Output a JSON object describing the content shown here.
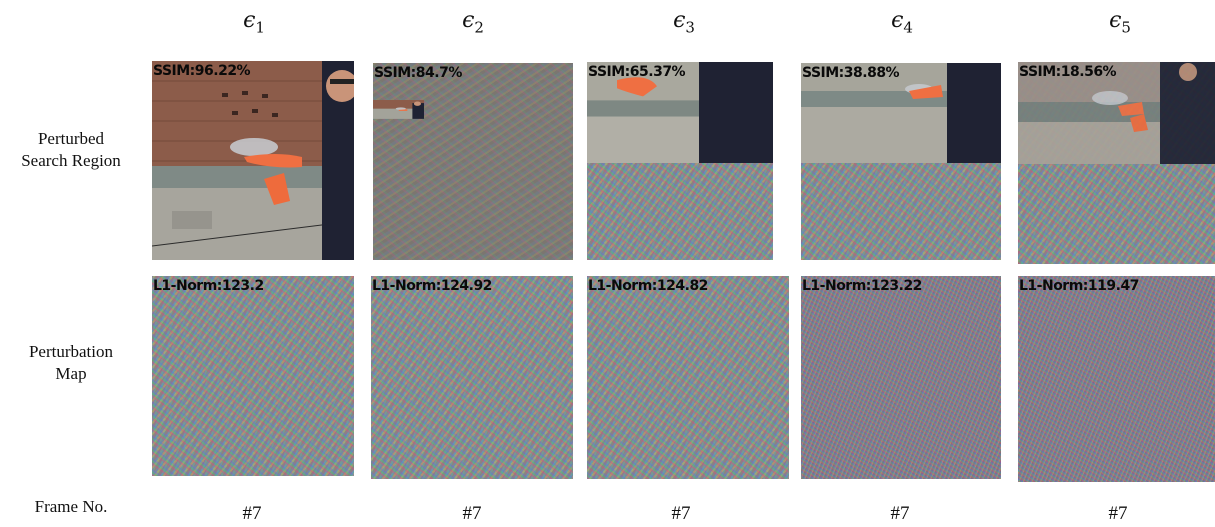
{
  "columns": [
    {
      "symbol": "ϵ",
      "sub": "1",
      "ssim": "SSIM:96.22%",
      "l1": "L1-Norm:123.2",
      "frame": "#7"
    },
    {
      "symbol": "ϵ",
      "sub": "2",
      "ssim": "SSIM:84.7%",
      "l1": "L1-Norm:124.92",
      "frame": "#7"
    },
    {
      "symbol": "ϵ",
      "sub": "3",
      "ssim": "SSIM:65.37%",
      "l1": "L1-Norm:124.82",
      "frame": "#7"
    },
    {
      "symbol": "ϵ",
      "sub": "4",
      "ssim": "SSIM:38.88%",
      "l1": "L1-Norm:123.22",
      "frame": "#7"
    },
    {
      "symbol": "ϵ",
      "sub": "5",
      "ssim": "SSIM:18.56%",
      "l1": "L1-Norm:119.47",
      "frame": "#7"
    }
  ],
  "rows": {
    "search_region": {
      "line1": "Perturbed",
      "line2": "Search Region"
    },
    "perturbation_map": {
      "line1": "Perturbation",
      "line2": "Map"
    },
    "frame_no": "Frame No."
  },
  "colors": {
    "wall_brick": "#8a5a48",
    "wall_concrete": "#a3a39a",
    "jacket": "#1f2233",
    "glove": "#f07040",
    "noise_gray": "#7d766f"
  }
}
